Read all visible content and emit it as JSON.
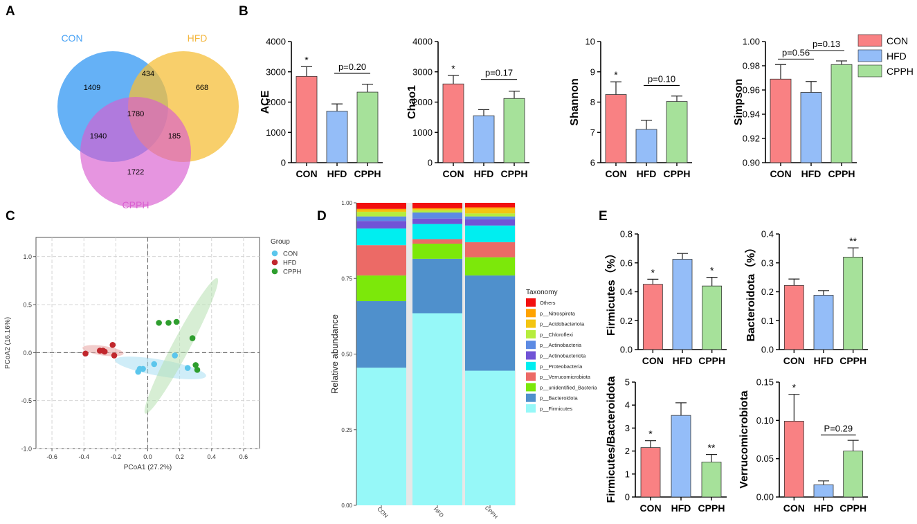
{
  "panels": {
    "A": "A",
    "B": "B",
    "C": "C",
    "D": "D",
    "E": "E"
  },
  "colors": {
    "CON": "#f98183",
    "HFD": "#94bdf8",
    "CPPH": "#a6e19a"
  },
  "venn": {
    "labels": {
      "CON": "CON",
      "HFD": "HFD",
      "CPPH": "CPPH"
    },
    "label_colors": {
      "CON": "#4aa3f5",
      "HFD": "#f4b63c",
      "CPPH": "#d95fd0"
    },
    "regions": {
      "con_only": "1409",
      "hfd_only": "668",
      "cpph_only": "1722",
      "con_hfd": "434",
      "con_cpph": "1940",
      "hfd_cpph": "185",
      "all": "1780"
    }
  },
  "legend_b": [
    {
      "key": "CON",
      "label": "CON"
    },
    {
      "key": "HFD",
      "label": "HFD"
    },
    {
      "key": "CPPH",
      "label": "CPPH"
    }
  ],
  "chart_data": [
    {
      "id": "B1",
      "type": "bar",
      "ylabel": "ACE",
      "categories": [
        "CON",
        "HFD",
        "CPPH"
      ],
      "values": [
        2850,
        1700,
        2330
      ],
      "errors": [
        320,
        240,
        260
      ],
      "ylim": [
        0,
        4000
      ],
      "yticks": [
        "0",
        "1000",
        "2000",
        "3000",
        "4000"
      ],
      "ytick_values": [
        0,
        1000,
        2000,
        3000,
        4000
      ],
      "stars": [
        "*",
        "",
        ""
      ],
      "comparisons": [
        {
          "from": 1,
          "to": 2,
          "y": 2950,
          "label": "p=0.20"
        }
      ]
    },
    {
      "id": "B2",
      "type": "bar",
      "ylabel": "Chao1",
      "categories": [
        "CON",
        "HFD",
        "CPPH"
      ],
      "values": [
        2600,
        1550,
        2120
      ],
      "errors": [
        280,
        200,
        240
      ],
      "ylim": [
        0,
        4000
      ],
      "yticks": [
        "0",
        "1000",
        "2000",
        "3000",
        "4000"
      ],
      "ytick_values": [
        0,
        1000,
        2000,
        3000,
        4000
      ],
      "stars": [
        "*",
        "",
        ""
      ],
      "comparisons": [
        {
          "from": 1,
          "to": 2,
          "y": 2750,
          "label": "p=0.17"
        }
      ]
    },
    {
      "id": "B3",
      "type": "bar",
      "ylabel": "Shannon",
      "categories": [
        "CON",
        "HFD",
        "CPPH"
      ],
      "values": [
        8.25,
        7.1,
        8.02
      ],
      "errors": [
        0.42,
        0.3,
        0.18
      ],
      "ylim": [
        6,
        10
      ],
      "yticks": [
        "6",
        "7",
        "8",
        "9",
        "10"
      ],
      "ytick_values": [
        6,
        7,
        8,
        9,
        10
      ],
      "stars": [
        "*",
        "",
        ""
      ],
      "comparisons": [
        {
          "from": 1,
          "to": 2,
          "y": 8.55,
          "label": "p=0.10"
        }
      ]
    },
    {
      "id": "B4",
      "type": "bar",
      "ylabel": "Simpson",
      "categories": [
        "CON",
        "HFD",
        "CPPH"
      ],
      "values": [
        0.969,
        0.958,
        0.981
      ],
      "errors": [
        0.012,
        0.009,
        0.003
      ],
      "ylim": [
        0.9,
        1.0
      ],
      "yticks": [
        "0.90",
        "0.92",
        "0.94",
        "0.96",
        "0.98",
        "1.00"
      ],
      "ytick_values": [
        0.9,
        0.92,
        0.94,
        0.96,
        0.98,
        1.0
      ],
      "stars": [
        "",
        "",
        ""
      ],
      "comparisons": [
        {
          "from": 0,
          "to": 1,
          "y": 0.9855,
          "label": "p=0.56"
        },
        {
          "from": 1,
          "to": 2,
          "y": 0.9925,
          "label": "p=0.13"
        }
      ]
    },
    {
      "id": "C",
      "type": "scatter",
      "xlabel": "PCoA1 (27.2%)",
      "ylabel": "PCoA2 (16.16%)",
      "xlim": [
        -0.7,
        0.7
      ],
      "ylim": [
        -1.0,
        1.2
      ],
      "xticks": [
        "-0.6",
        "-0.4",
        "-0.2",
        "0.0",
        "0.2",
        "0.4",
        "0.6"
      ],
      "xtick_values": [
        -0.6,
        -0.4,
        -0.2,
        0,
        0.2,
        0.4,
        0.6
      ],
      "yticks": [
        "-1.0",
        "-0.5",
        "0.0",
        "0.5",
        "1.0"
      ],
      "ytick_values": [
        -1,
        -0.5,
        0,
        0.5,
        1
      ],
      "legend_title": "Group",
      "series": [
        {
          "name": "CON",
          "color": "#5bc6ec",
          "ellipse_color": "#a8dff2",
          "points": [
            [
              -0.05,
              -0.17
            ],
            [
              -0.06,
              -0.2
            ],
            [
              -0.03,
              -0.17
            ],
            [
              0.04,
              -0.12
            ],
            [
              0.17,
              -0.03
            ],
            [
              0.25,
              -0.16
            ]
          ],
          "ellipse": {
            "cx": 0.08,
            "cy": -0.16,
            "rx": 0.29,
            "ry": 0.085,
            "angle": 10
          }
        },
        {
          "name": "HFD",
          "color": "#c1272d",
          "ellipse_color": "#e8a4a2",
          "points": [
            [
              -0.39,
              -0.01
            ],
            [
              -0.3,
              0.02
            ],
            [
              -0.27,
              0.01
            ],
            [
              -0.22,
              0.08
            ],
            [
              -0.21,
              -0.03
            ],
            [
              -0.28,
              0.02
            ]
          ],
          "ellipse": {
            "cx": -0.28,
            "cy": 0.02,
            "rx": 0.13,
            "ry": 0.05,
            "angle": 8
          }
        },
        {
          "name": "CPPH",
          "color": "#2e9e2e",
          "ellipse_color": "#b6e0b0",
          "points": [
            [
              0.07,
              0.31
            ],
            [
              0.13,
              0.31
            ],
            [
              0.18,
              0.32
            ],
            [
              0.28,
              0.15
            ],
            [
              0.3,
              -0.13
            ],
            [
              0.31,
              -0.18
            ]
          ],
          "ellipse": {
            "cx": 0.21,
            "cy": 0.07,
            "rx": 0.48,
            "ry": 0.09,
            "angle": -62
          }
        }
      ]
    },
    {
      "id": "D",
      "type": "stacked-bar",
      "ylabel": "Relative abundance",
      "categories": [
        "CON",
        "HFD",
        "CPPH"
      ],
      "yticks": [
        "0.00",
        "0.25",
        "0.50",
        "0.75",
        "1.00"
      ],
      "ytick_values": [
        0,
        0.25,
        0.5,
        0.75,
        1
      ],
      "legend_title": "Taxonomy",
      "series": [
        {
          "name": "p__Firmicutes",
          "color": "#96f8f8",
          "values": [
            0.455,
            0.635,
            0.445
          ]
        },
        {
          "name": "p__Bacteroidota",
          "color": "#4f90cc",
          "values": [
            0.22,
            0.18,
            0.315
          ]
        },
        {
          "name": "p__unidentified_Bacteria",
          "color": "#7ce80a",
          "values": [
            0.085,
            0.05,
            0.06
          ]
        },
        {
          "name": "p__Verrucomicrobiota",
          "color": "#ec6a66",
          "values": [
            0.1,
            0.015,
            0.05
          ]
        },
        {
          "name": "p__Proteobacteria",
          "color": "#00eef0",
          "values": [
            0.055,
            0.05,
            0.055
          ]
        },
        {
          "name": "p__Actinobacteriota",
          "color": "#7153d6",
          "values": [
            0.025,
            0.018,
            0.02
          ]
        },
        {
          "name": "p__Actinobacteria",
          "color": "#5c8ae3",
          "values": [
            0.015,
            0.02,
            0.01
          ]
        },
        {
          "name": "p__Chloroflexi",
          "color": "#b6ed3d",
          "values": [
            0.015,
            0.007,
            0.01
          ]
        },
        {
          "name": "p__Acidobacteriota",
          "color": "#f3c512",
          "values": [
            0.005,
            0.004,
            0.015
          ]
        },
        {
          "name": "p__Nitrospirota",
          "color": "#ffa300",
          "values": [
            0.005,
            0.003,
            0.005
          ]
        },
        {
          "name": "Others",
          "color": "#f20f0f",
          "values": [
            0.02,
            0.018,
            0.015
          ]
        }
      ]
    },
    {
      "id": "E1",
      "type": "bar",
      "ylabel": "Firmicutes（%）",
      "categories": [
        "CON",
        "HFD",
        "CPPH"
      ],
      "values": [
        0.452,
        0.625,
        0.44
      ],
      "errors": [
        0.035,
        0.04,
        0.06
      ],
      "ylim": [
        0,
        0.8
      ],
      "yticks": [
        "0.0",
        "0.2",
        "0.4",
        "0.6",
        "0.8"
      ],
      "ytick_values": [
        0,
        0.2,
        0.4,
        0.6,
        0.8
      ],
      "stars": [
        "*",
        "",
        "*"
      ],
      "comparisons": []
    },
    {
      "id": "E2",
      "type": "bar",
      "ylabel": "Bacteroidota（%）",
      "categories": [
        "CON",
        "HFD",
        "CPPH"
      ],
      "values": [
        0.222,
        0.188,
        0.32
      ],
      "errors": [
        0.022,
        0.016,
        0.032
      ],
      "ylim": [
        0,
        0.4
      ],
      "yticks": [
        "0.0",
        "0.1",
        "0.2",
        "0.3",
        "0.4"
      ],
      "ytick_values": [
        0,
        0.1,
        0.2,
        0.3,
        0.4
      ],
      "stars": [
        "",
        "",
        "**"
      ],
      "comparisons": []
    },
    {
      "id": "E3",
      "type": "bar",
      "ylabel": "Firmicutes/Bacteroidota",
      "categories": [
        "CON",
        "HFD",
        "CPPH"
      ],
      "values": [
        2.15,
        3.55,
        1.52
      ],
      "errors": [
        0.3,
        0.55,
        0.33
      ],
      "ylim": [
        0,
        5
      ],
      "yticks": [
        "0",
        "1",
        "2",
        "3",
        "4",
        "5"
      ],
      "ytick_values": [
        0,
        1,
        2,
        3,
        4,
        5
      ],
      "stars": [
        "*",
        "",
        "**"
      ],
      "comparisons": []
    },
    {
      "id": "E4",
      "type": "bar",
      "ylabel": "Verrucomicrobiota",
      "categories": [
        "CON",
        "HFD",
        "CPPH"
      ],
      "values": [
        0.099,
        0.016,
        0.06
      ],
      "errors": [
        0.035,
        0.005,
        0.014
      ],
      "ylim": [
        0,
        0.15
      ],
      "yticks": [
        "0.00",
        "0.05",
        "0.10",
        "0.15"
      ],
      "ytick_values": [
        0,
        0.05,
        0.1,
        0.15
      ],
      "stars": [
        "*",
        "",
        ""
      ],
      "comparisons": [
        {
          "from": 1,
          "to": 2,
          "y": 0.081,
          "label": "P=0.29"
        }
      ]
    }
  ]
}
